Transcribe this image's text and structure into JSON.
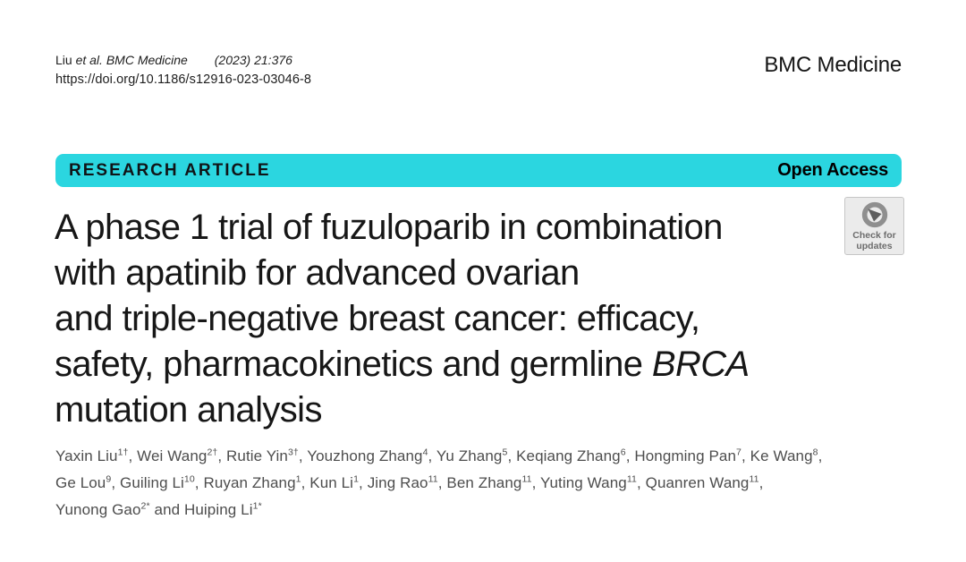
{
  "header": {
    "citation": {
      "author": "Liu",
      "italic_part": "et al. BMC Medicine",
      "ref": "(2023) 21:376"
    },
    "doi": "https://doi.org/10.1186/s12916-023-03046-8",
    "journal": "BMC Medicine"
  },
  "banner": {
    "label": "RESEARCH ARTICLE",
    "open_access": "Open Access",
    "color": "#2bd6e0"
  },
  "article": {
    "title_plain": "A phase 1 trial of fuzuloparib in combination with apatinib for advanced ovarian and triple-negative breast cancer: efficacy, safety, pharmacokinetics and germline BRCA mutation analysis",
    "title_lines": [
      [
        {
          "t": "A phase 1 trial of fuzuloparib in combination"
        }
      ],
      [
        {
          "t": "with apatinib for advanced ovarian"
        }
      ],
      [
        {
          "t": "and triple-negative breast cancer: efficacy,"
        }
      ],
      [
        {
          "t": "safety, pharmacokinetics and germline "
        },
        {
          "t": "BRCA",
          "i": true
        }
      ],
      [
        {
          "t": "mutation analysis"
        }
      ]
    ]
  },
  "check_badge": {
    "line1": "Check for",
    "line2": "updates"
  },
  "authors": {
    "lines": [
      [
        {
          "n": "Yaxin Liu",
          "s": "1†",
          "post": ", "
        },
        {
          "n": "Wei Wang",
          "s": "2†",
          "post": ", "
        },
        {
          "n": "Rutie Yin",
          "s": "3†",
          "post": ", "
        },
        {
          "n": "Youzhong Zhang",
          "s": "4",
          "post": ", "
        },
        {
          "n": "Yu Zhang",
          "s": "5",
          "post": ", "
        },
        {
          "n": "Keqiang Zhang",
          "s": "6",
          "post": ", "
        },
        {
          "n": "Hongming Pan",
          "s": "7",
          "post": ", "
        },
        {
          "n": "Ke Wang",
          "s": "8",
          "post": ","
        }
      ],
      [
        {
          "n": "Ge Lou",
          "s": "9",
          "post": ", "
        },
        {
          "n": "Guiling Li",
          "s": "10",
          "post": ", "
        },
        {
          "n": "Ruyan Zhang",
          "s": "1",
          "post": ", "
        },
        {
          "n": "Kun Li",
          "s": "1",
          "post": ", "
        },
        {
          "n": "Jing Rao",
          "s": "11",
          "post": ", "
        },
        {
          "n": "Ben Zhang",
          "s": "11",
          "post": ", "
        },
        {
          "n": "Yuting Wang",
          "s": "11",
          "post": ", "
        },
        {
          "n": "Quanren Wang",
          "s": "11",
          "post": ","
        }
      ],
      [
        {
          "n": "Yunong Gao",
          "s": "2*",
          "post": ""
        },
        {
          "pre": " and ",
          "n": "Huiping Li",
          "s": "1*",
          "post": ""
        }
      ]
    ]
  }
}
